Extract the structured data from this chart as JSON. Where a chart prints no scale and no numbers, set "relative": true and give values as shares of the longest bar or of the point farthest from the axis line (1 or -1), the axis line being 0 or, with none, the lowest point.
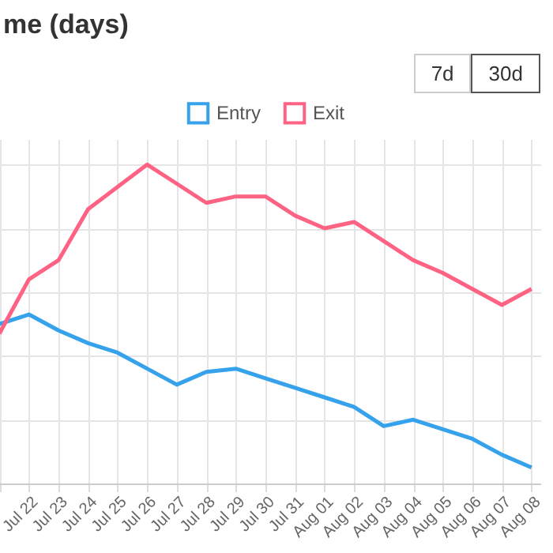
{
  "chart_data": {
    "type": "line",
    "title": "me (days)",
    "annotations": [
      "7d",
      "30d"
    ],
    "categories": [
      null,
      "Jul 22",
      "Jul 23",
      "Jul 24",
      "Jul 25",
      "Jul 26",
      "Jul 27",
      "Jul 28",
      "Jul 29",
      "Jul 30",
      "Jul 31",
      "Aug 01",
      "Aug 02",
      "Aug 03",
      "Aug 04",
      "Aug 05",
      "Aug 06",
      "Aug 07",
      "Aug 08"
    ],
    "relative": true,
    "grid": true,
    "legend": "top",
    "marker": "none",
    "line_style": "solid",
    "series": [
      {
        "name": "Entry",
        "color": "#36a2eb",
        "values": [
          0.5,
          0.53,
          0.48,
          0.44,
          0.41,
          0.36,
          0.31,
          0.35,
          0.36,
          0.33,
          0.3,
          0.27,
          0.24,
          0.18,
          0.2,
          0.17,
          0.14,
          0.09,
          0.05
        ]
      },
      {
        "name": "Exit",
        "color": "#ff6384",
        "values": [
          0.47,
          0.64,
          0.7,
          0.86,
          0.93,
          1,
          0.94,
          0.88,
          0.9,
          0.9,
          0.84,
          0.8,
          0.82,
          0.76,
          0.7,
          0.66,
          0.61,
          0.56,
          0.61
        ]
      }
    ]
  }
}
